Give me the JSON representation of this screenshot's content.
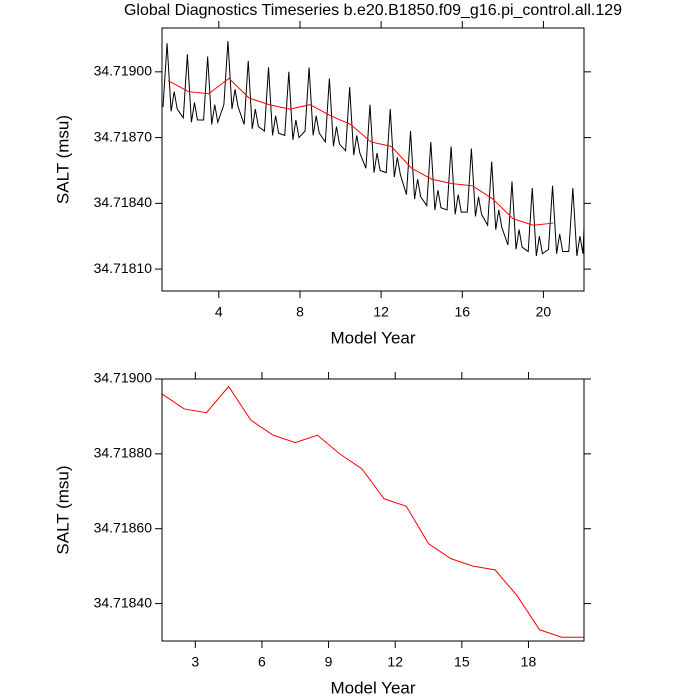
{
  "chart_data": [
    {
      "type": "line",
      "title": "Global Diagnostics Timeseries b.e20.B1850.f09_g16.pi_control.all.129",
      "x_label": "Model Year",
      "y_label": "SALT (msu)",
      "xlim": [
        1.2,
        22
      ],
      "xticks": [
        4,
        8,
        12,
        16,
        20
      ],
      "ylim": [
        34.718,
        34.7192
      ],
      "yticks": [
        {
          "value": 34.7181,
          "label": "34.71810"
        },
        {
          "value": 34.7184,
          "label": "34.71840"
        },
        {
          "value": 34.7187,
          "label": "34.71870"
        },
        {
          "value": 34.719,
          "label": "34.71900"
        }
      ],
      "series": [
        {
          "color": "#000000",
          "x": [
            1.25,
            1.45,
            1.65,
            1.8,
            1.95,
            2.25,
            2.45,
            2.65,
            2.8,
            2.95,
            3.25,
            3.45,
            3.65,
            3.8,
            3.95,
            4.25,
            4.45,
            4.65,
            4.8,
            4.95,
            5.25,
            5.45,
            5.65,
            5.8,
            5.95,
            6.25,
            6.45,
            6.65,
            6.8,
            6.95,
            7.25,
            7.45,
            7.65,
            7.8,
            7.95,
            8.25,
            8.45,
            8.65,
            8.8,
            8.95,
            9.25,
            9.45,
            9.65,
            9.8,
            9.95,
            10.25,
            10.45,
            10.65,
            10.8,
            10.95,
            11.25,
            11.45,
            11.65,
            11.8,
            11.95,
            12.25,
            12.45,
            12.65,
            12.8,
            12.95,
            13.25,
            13.45,
            13.65,
            13.8,
            13.95,
            14.25,
            14.45,
            14.65,
            14.8,
            14.95,
            15.25,
            15.45,
            15.65,
            15.8,
            15.95,
            16.25,
            16.45,
            16.65,
            16.8,
            16.95,
            17.25,
            17.45,
            17.65,
            17.8,
            17.95,
            18.25,
            18.45,
            18.65,
            18.8,
            18.95,
            19.25,
            19.45,
            19.65,
            19.8,
            19.95,
            20.25,
            20.45,
            20.65,
            20.8,
            20.95,
            21.25,
            21.45,
            21.65,
            21.8,
            21.95,
            22
          ],
          "values": [
            34.71884,
            34.71913,
            34.71882,
            34.71891,
            34.71883,
            34.71879,
            34.71908,
            34.71877,
            34.71886,
            34.71878,
            34.71878,
            34.71907,
            34.71876,
            34.71885,
            34.71877,
            34.71885,
            34.71914,
            34.71883,
            34.71892,
            34.71884,
            34.71876,
            34.71905,
            34.71874,
            34.71883,
            34.71875,
            34.71873,
            34.71902,
            34.71871,
            34.7188,
            34.71872,
            34.71871,
            34.719,
            34.71869,
            34.71878,
            34.7187,
            34.71873,
            34.71902,
            34.71871,
            34.7188,
            34.71872,
            34.71868,
            34.71897,
            34.71866,
            34.71875,
            34.71867,
            34.71864,
            34.71893,
            34.71862,
            34.71871,
            34.71863,
            34.71856,
            34.71885,
            34.71854,
            34.71863,
            34.71855,
            34.71854,
            34.71883,
            34.71852,
            34.71861,
            34.71853,
            34.71844,
            34.71873,
            34.71842,
            34.71851,
            34.71843,
            34.71839,
            34.71868,
            34.71837,
            34.71846,
            34.71838,
            34.71837,
            34.71866,
            34.71835,
            34.71844,
            34.71836,
            34.71836,
            34.71865,
            34.71834,
            34.71843,
            34.71835,
            34.7183,
            34.71859,
            34.71828,
            34.71837,
            34.71829,
            34.71821,
            34.7185,
            34.71819,
            34.71828,
            34.7182,
            34.71818,
            34.71847,
            34.71816,
            34.71825,
            34.71817,
            34.71819,
            34.71848,
            34.71817,
            34.71826,
            34.71818,
            34.71818,
            34.71847,
            34.71816,
            34.71825,
            34.71817,
            34.71829
          ]
        },
        {
          "color": "#ff0000",
          "x": [
            1.5,
            2.5,
            3.5,
            4.5,
            5.5,
            6.5,
            7.5,
            8.5,
            9.5,
            10.5,
            11.5,
            12.5,
            13.5,
            14.5,
            15.5,
            16.5,
            17.5,
            18.5,
            19.5,
            20.5
          ],
          "values": [
            34.71896,
            34.71891,
            34.7189,
            34.71897,
            34.71888,
            34.71885,
            34.71883,
            34.71885,
            34.7188,
            34.71876,
            34.71868,
            34.71866,
            34.71856,
            34.71851,
            34.71849,
            34.71848,
            34.71842,
            34.71833,
            34.7183,
            34.71831
          ]
        }
      ]
    },
    {
      "type": "line",
      "x_label": "Model Year",
      "y_label": "SALT (msu)",
      "xlim": [
        1.5,
        20.5
      ],
      "xticks": [
        3,
        6,
        9,
        12,
        15,
        18
      ],
      "ylim": [
        34.7183,
        34.719
      ],
      "yticks": [
        {
          "value": 34.7184,
          "label": "34.71840"
        },
        {
          "value": 34.7186,
          "label": "34.71860"
        },
        {
          "value": 34.7188,
          "label": "34.71880"
        },
        {
          "value": 34.719,
          "label": "34.71900"
        }
      ],
      "series": [
        {
          "color": "#ff0000",
          "x": [
            1.5,
            2.5,
            3.5,
            4.5,
            5.5,
            6.5,
            7.5,
            8.5,
            9.5,
            10.5,
            11.5,
            12.5,
            13.5,
            14.5,
            15.5,
            16.5,
            17.5,
            18.5,
            19.5,
            20.5
          ],
          "values": [
            34.71896,
            34.71892,
            34.71891,
            34.71898,
            34.71889,
            34.71885,
            34.71883,
            34.71885,
            34.7188,
            34.71876,
            34.71868,
            34.71866,
            34.71856,
            34.71852,
            34.7185,
            34.71849,
            34.71842,
            34.71833,
            34.71831,
            34.71831
          ]
        }
      ]
    }
  ]
}
